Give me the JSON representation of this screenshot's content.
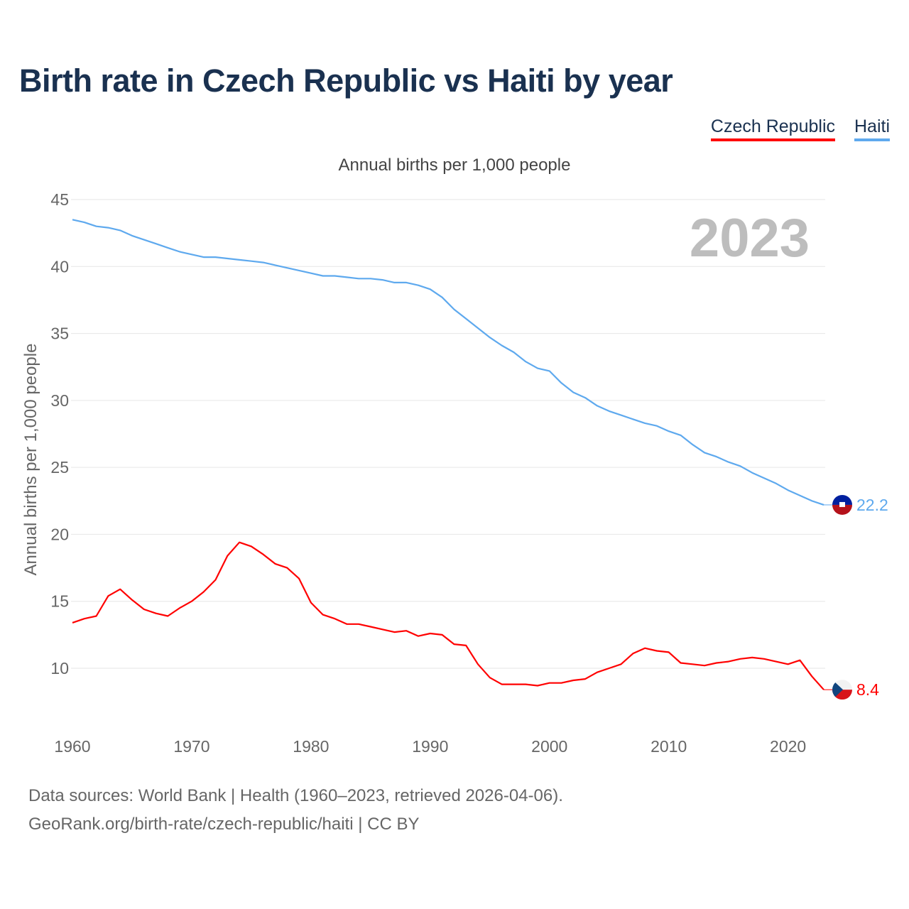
{
  "title": "Birth rate in Czech Republic vs Haiti by year",
  "legend": [
    "Czech Republic",
    "Haiti"
  ],
  "year_watermark": "2023",
  "footer": {
    "line1": "Data sources: World Bank | Health (1960–2023, retrieved 2026-04-06).",
    "line2": "GeoRank.org/birth-rate/czech-republic/haiti | CC BY"
  },
  "colors": {
    "czech": "#ff0000",
    "haiti": "#5ea9ee",
    "title": "#1a3150"
  },
  "chart_data": {
    "type": "line",
    "title": "Birth rate in Czech Republic vs Haiti by year",
    "subtitle": "Annual births per 1,000 people",
    "xlabel": "",
    "ylabel": "Annual births per 1,000 people",
    "xlim": [
      1960,
      2023
    ],
    "ylim": [
      10,
      45
    ],
    "yticks": [
      10,
      15,
      20,
      25,
      30,
      35,
      40,
      45
    ],
    "xticks": [
      1960,
      1970,
      1980,
      1990,
      2000,
      2010,
      2020
    ],
    "grid": true,
    "legend_position": "top-right",
    "x_start": 1960,
    "series": [
      {
        "name": "Czech Republic",
        "color": "#ff0000",
        "end_label": "8.4",
        "values": [
          13.4,
          13.7,
          13.9,
          15.4,
          15.9,
          15.1,
          14.4,
          14.1,
          13.9,
          14.5,
          15.0,
          15.7,
          16.6,
          18.4,
          19.4,
          19.1,
          18.5,
          17.8,
          17.5,
          16.7,
          14.9,
          14.0,
          13.7,
          13.3,
          13.3,
          13.1,
          12.9,
          12.7,
          12.8,
          12.4,
          12.6,
          12.5,
          11.8,
          11.7,
          10.3,
          9.3,
          8.8,
          8.8,
          8.8,
          8.7,
          8.9,
          8.9,
          9.1,
          9.2,
          9.7,
          10.0,
          10.3,
          11.1,
          11.5,
          11.3,
          11.2,
          10.4,
          10.3,
          10.2,
          10.4,
          10.5,
          10.7,
          10.8,
          10.7,
          10.5,
          10.3,
          10.6,
          9.4,
          8.4
        ]
      },
      {
        "name": "Haiti",
        "color": "#5ea9ee",
        "end_label": "22.2",
        "values": [
          43.5,
          43.3,
          43.0,
          42.9,
          42.7,
          42.3,
          42.0,
          41.7,
          41.4,
          41.1,
          40.9,
          40.7,
          40.7,
          40.6,
          40.5,
          40.4,
          40.3,
          40.1,
          39.9,
          39.7,
          39.5,
          39.3,
          39.3,
          39.2,
          39.1,
          39.1,
          39.0,
          38.8,
          38.8,
          38.6,
          38.3,
          37.7,
          36.8,
          36.1,
          35.4,
          34.7,
          34.1,
          33.6,
          32.9,
          32.4,
          32.2,
          31.3,
          30.6,
          30.2,
          29.6,
          29.2,
          28.9,
          28.6,
          28.3,
          28.1,
          27.7,
          27.4,
          26.7,
          26.1,
          25.8,
          25.4,
          25.1,
          24.6,
          24.2,
          23.8,
          23.3,
          22.9,
          22.5,
          22.2
        ]
      }
    ]
  }
}
